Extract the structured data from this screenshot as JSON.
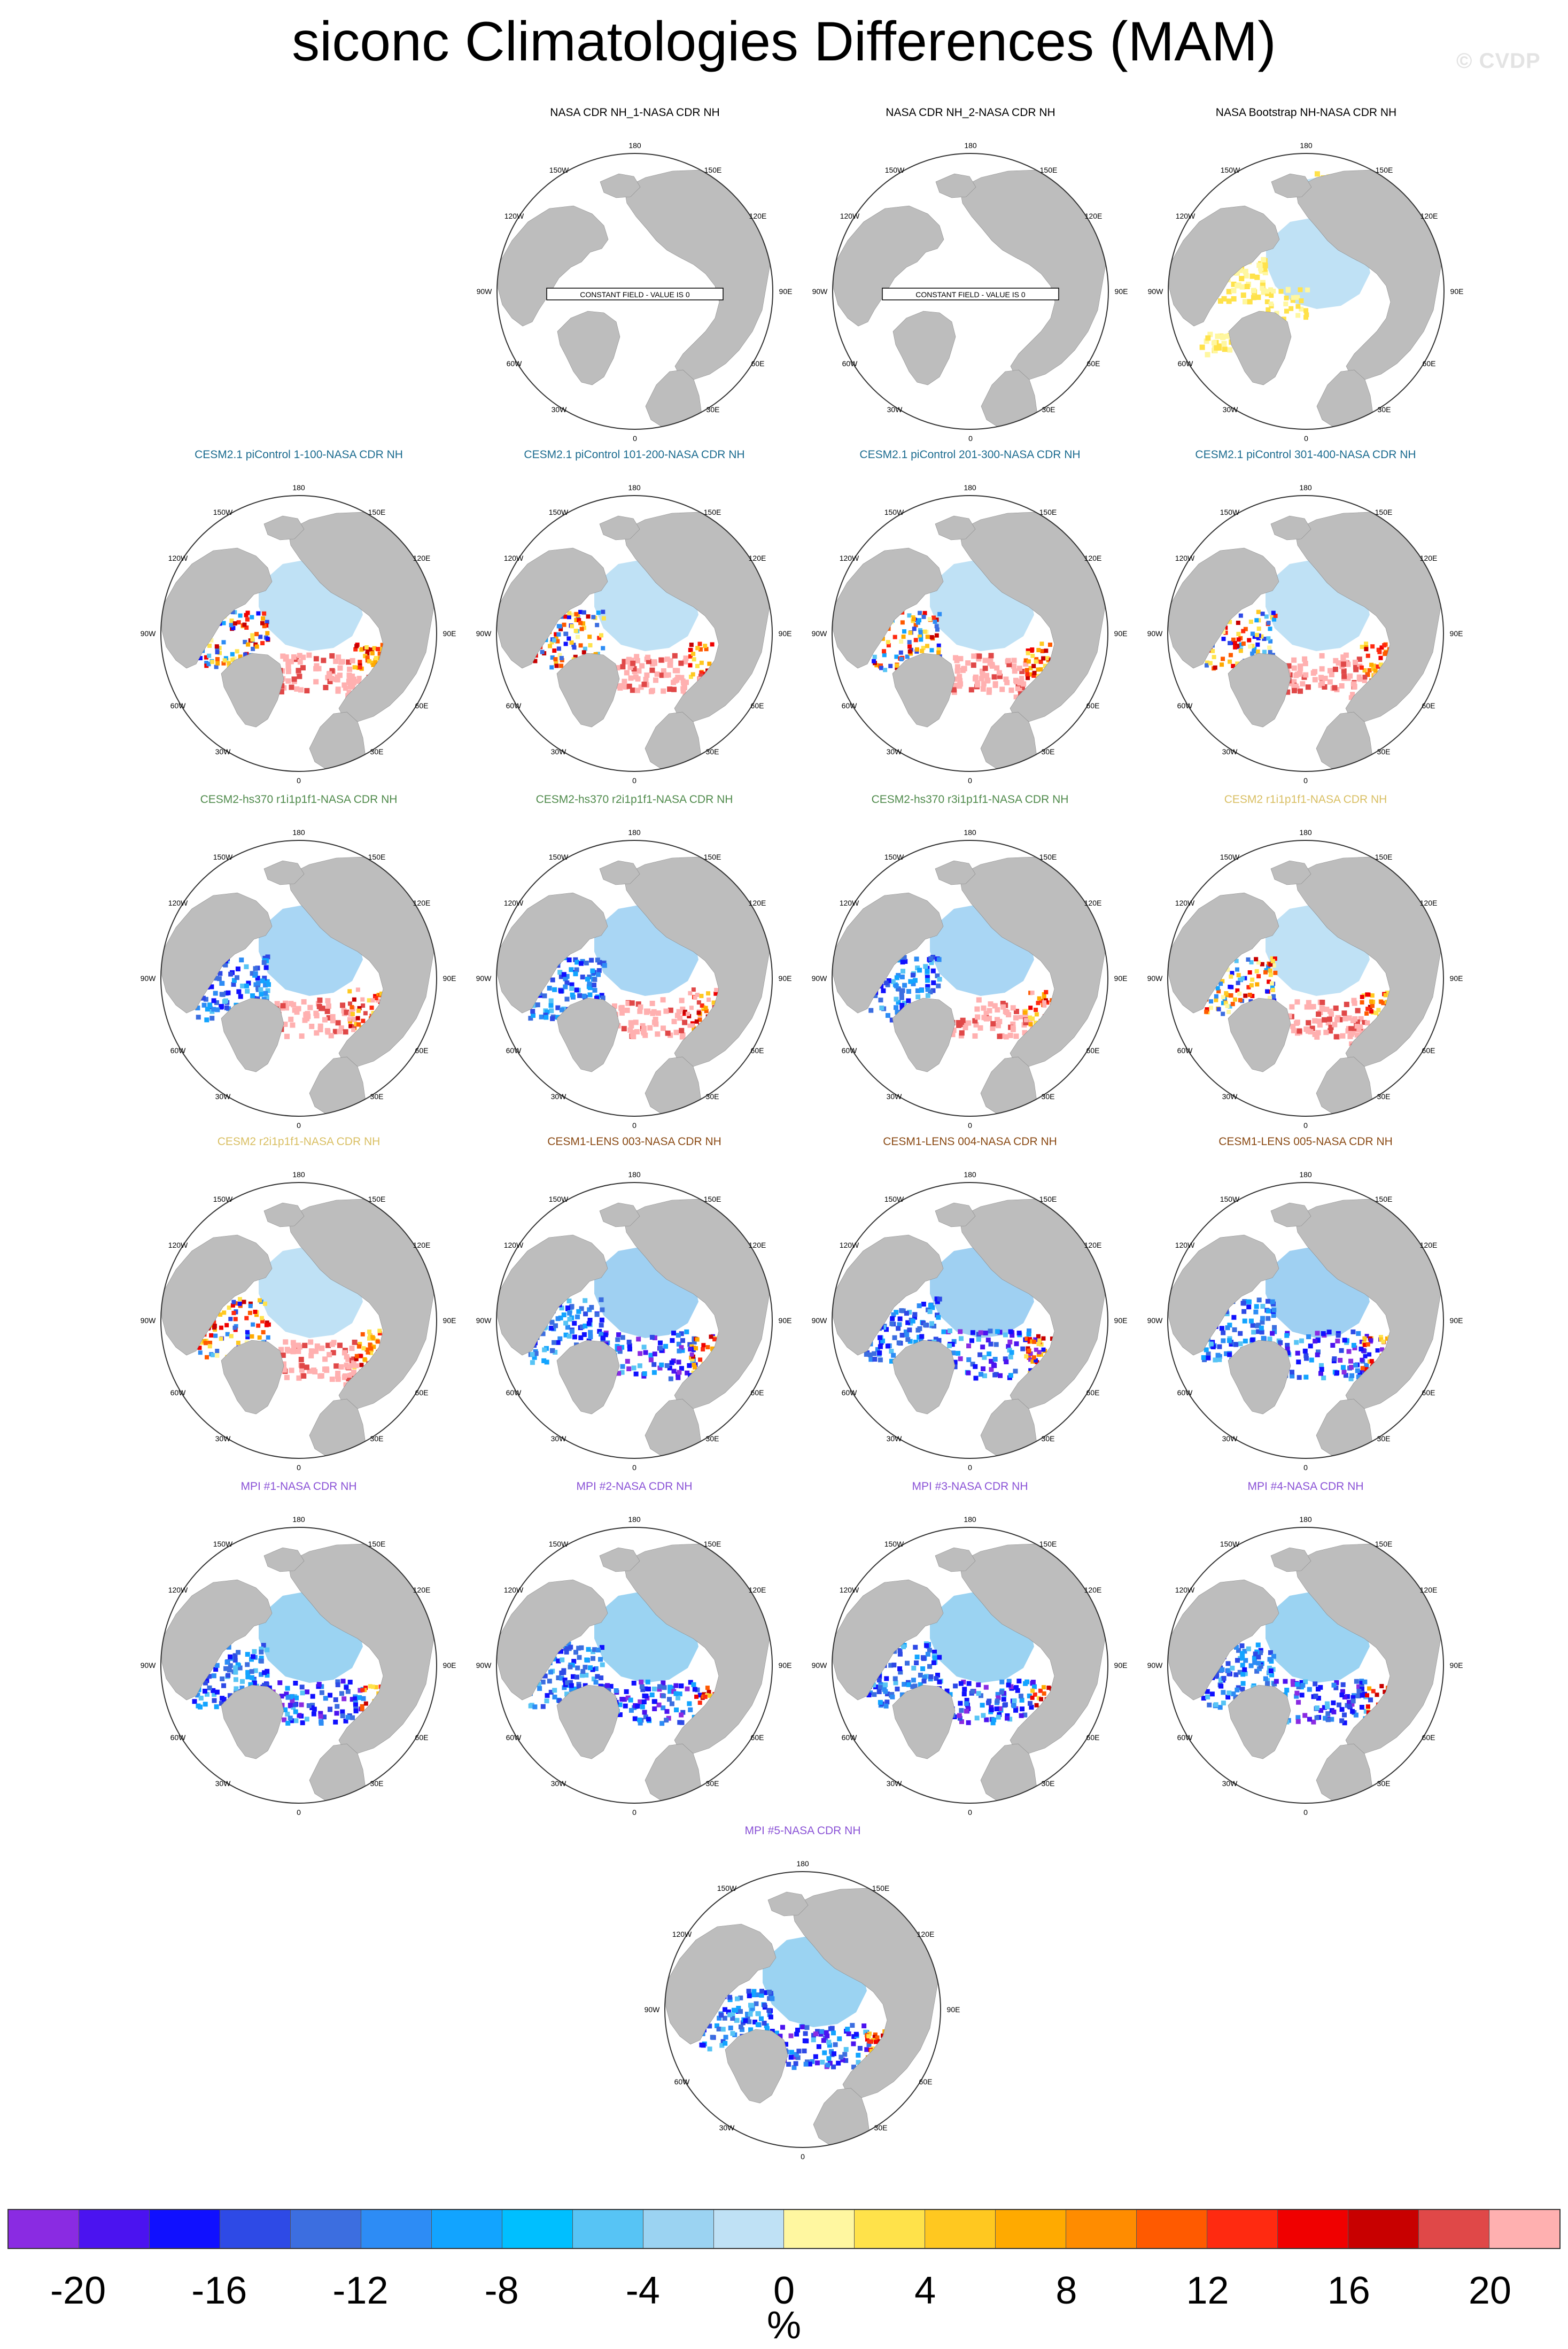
{
  "title": "siconc Climatologies Differences (MAM)",
  "watermark": "© CVDP",
  "map_labels": {
    "top": "180",
    "bottom": "0",
    "left": "90W",
    "right": "90E",
    "upper_left_1": "150W",
    "upper_left_2": "120W",
    "upper_right_1": "150E",
    "upper_right_2": "120E",
    "lower_left_1": "60W",
    "lower_left_2": "30W",
    "lower_right_1": "60E",
    "lower_right_2": "30E"
  },
  "constant_field_note": "CONSTANT FIELD - VALUE IS 0",
  "colors": {
    "land": "#bdbdbd",
    "ocean": "#ffffff",
    "ice_zero": "#bfe1f5",
    "title_obs": "#000000",
    "title_cesm21": "#1b6b8f",
    "title_hs370": "#4f8a4b",
    "title_cesm2": "#d9bf63",
    "title_lens": "#8a4a14",
    "title_mpi": "#8a52d6"
  },
  "panels": [
    {
      "title": "NASA CDR NH_1-NASA CDR NH",
      "group": "obs",
      "style": "constant"
    },
    {
      "title": "NASA CDR NH_2-NASA CDR NH",
      "group": "obs",
      "style": "constant"
    },
    {
      "title": "NASA Bootstrap NH-NASA CDR NH",
      "group": "obs",
      "style": "bootstrap"
    },
    {
      "title": "CESM2.1 piControl 1-100-NASA CDR NH",
      "group": "cesm21",
      "style": "cesm21"
    },
    {
      "title": "CESM2.1 piControl 101-200-NASA CDR NH",
      "group": "cesm21",
      "style": "cesm21"
    },
    {
      "title": "CESM2.1 piControl 201-300-NASA CDR NH",
      "group": "cesm21",
      "style": "cesm21"
    },
    {
      "title": "CESM2.1 piControl 301-400-NASA CDR NH",
      "group": "cesm21",
      "style": "cesm21"
    },
    {
      "title": "CESM2-hs370 r1i1p1f1-NASA CDR NH",
      "group": "hs370",
      "style": "hs370"
    },
    {
      "title": "CESM2-hs370 r2i1p1f1-NASA CDR NH",
      "group": "hs370",
      "style": "hs370"
    },
    {
      "title": "CESM2-hs370 r3i1p1f1-NASA CDR NH",
      "group": "hs370",
      "style": "hs370"
    },
    {
      "title": "CESM2 r1i1p1f1-NASA CDR NH",
      "group": "cesm2",
      "style": "cesm2"
    },
    {
      "title": "CESM2 r2i1p1f1-NASA CDR NH",
      "group": "cesm2",
      "style": "cesm2"
    },
    {
      "title": "CESM1-LENS 003-NASA CDR NH",
      "group": "lens",
      "style": "lens"
    },
    {
      "title": "CESM1-LENS 004-NASA CDR NH",
      "group": "lens",
      "style": "lens"
    },
    {
      "title": "CESM1-LENS 005-NASA CDR NH",
      "group": "lens",
      "style": "lens"
    },
    {
      "title": "MPI #1-NASA CDR NH",
      "group": "mpi",
      "style": "mpi"
    },
    {
      "title": "MPI #2-NASA CDR NH",
      "group": "mpi",
      "style": "mpi"
    },
    {
      "title": "MPI #3-NASA CDR NH",
      "group": "mpi",
      "style": "mpi"
    },
    {
      "title": "MPI #4-NASA CDR NH",
      "group": "mpi",
      "style": "mpi"
    },
    {
      "title": "MPI #5-NASA CDR NH",
      "group": "mpi",
      "style": "mpi"
    }
  ],
  "colorbar": {
    "colors": [
      "#8a2be2",
      "#4b13f0",
      "#1010ff",
      "#2e4ae6",
      "#3c6ee0",
      "#2d8cf5",
      "#12a4ff",
      "#00bfff",
      "#57c4f5",
      "#9bd3f2",
      "#bfe1f5",
      "#fff7a0",
      "#ffe24a",
      "#ffc820",
      "#ffaa00",
      "#ff8c00",
      "#ff5a00",
      "#ff2a10",
      "#f00000",
      "#c80000",
      "#e04848",
      "#ffb0b0"
    ],
    "tick_labels": [
      "-20",
      "-16",
      "-12",
      "-8",
      "-4",
      "0",
      "4",
      "8",
      "12",
      "16",
      "20"
    ],
    "units": "%"
  }
}
